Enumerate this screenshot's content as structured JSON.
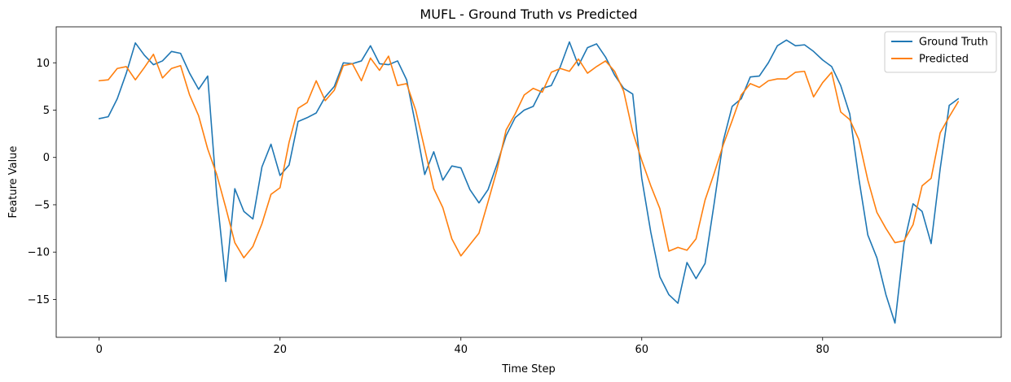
{
  "chart_data": {
    "type": "line",
    "title": "MUFL - Ground Truth vs Predicted",
    "xlabel": "Time Step",
    "ylabel": "Feature Value",
    "xlim": [
      -4.75,
      99.75
    ],
    "ylim": [
      -19.0,
      13.8
    ],
    "xticks": [
      0,
      20,
      40,
      60,
      80
    ],
    "yticks": [
      -15,
      -10,
      -5,
      0,
      5,
      10
    ],
    "grid": false,
    "legend": "top-right",
    "series": [
      {
        "name": "Ground Truth",
        "color": "#1f77b4",
        "values": [
          4.1,
          4.3,
          6.2,
          8.9,
          12.1,
          10.8,
          9.8,
          10.2,
          11.2,
          11.0,
          8.9,
          7.2,
          8.6,
          -3.9,
          -13.1,
          -3.3,
          -5.7,
          -6.5,
          -1.0,
          1.4,
          -1.9,
          -0.8,
          3.8,
          4.2,
          4.7,
          6.4,
          7.5,
          10.0,
          9.9,
          10.2,
          11.8,
          9.9,
          9.8,
          10.2,
          8.2,
          3.4,
          -1.8,
          0.6,
          -2.4,
          -0.9,
          -1.1,
          -3.4,
          -4.8,
          -3.4,
          -0.7,
          2.3,
          4.2,
          5.0,
          5.4,
          7.3,
          7.6,
          9.6,
          12.2,
          9.7,
          11.6,
          12.0,
          10.6,
          8.7,
          7.3,
          6.7,
          -2.2,
          -7.9,
          -12.6,
          -14.5,
          -15.4,
          -11.1,
          -12.8,
          -11.2,
          -4.9,
          1.7,
          5.4,
          6.2,
          8.5,
          8.6,
          10.0,
          11.8,
          12.4,
          11.8,
          11.9,
          11.2,
          10.3,
          9.6,
          7.6,
          4.6,
          -2.2,
          -8.2,
          -10.6,
          -14.5,
          -17.5,
          -9.1,
          -4.9,
          -5.7,
          -9.1,
          -1.2,
          5.5,
          6.2
        ]
      },
      {
        "name": "Predicted",
        "color": "#ff7f0e",
        "values": [
          8.1,
          8.2,
          9.4,
          9.6,
          8.2,
          9.5,
          10.9,
          8.4,
          9.4,
          9.7,
          6.6,
          4.4,
          0.9,
          -1.8,
          -5.3,
          -9.0,
          -10.6,
          -9.4,
          -7.0,
          -3.9,
          -3.2,
          1.6,
          5.2,
          5.8,
          8.1,
          6.0,
          7.1,
          9.7,
          9.9,
          8.1,
          10.5,
          9.2,
          10.7,
          7.6,
          7.8,
          5.0,
          0.9,
          -3.3,
          -5.3,
          -8.6,
          -10.4,
          -9.2,
          -8.0,
          -4.7,
          -1.3,
          2.9,
          4.6,
          6.6,
          7.3,
          6.9,
          9.0,
          9.4,
          9.1,
          10.4,
          8.9,
          9.6,
          10.2,
          9.1,
          7.0,
          2.7,
          -0.3,
          -3.0,
          -5.4,
          -9.9,
          -9.5,
          -9.8,
          -8.6,
          -4.5,
          -1.7,
          1.3,
          3.9,
          6.6,
          7.8,
          7.4,
          8.1,
          8.3,
          8.3,
          9.0,
          9.1,
          6.4,
          7.9,
          9.0,
          4.8,
          4.0,
          1.9,
          -2.4,
          -5.8,
          -7.5,
          -9.0,
          -8.8,
          -7.1,
          -3.0,
          -2.2,
          2.6,
          4.3,
          5.9
        ]
      }
    ]
  }
}
